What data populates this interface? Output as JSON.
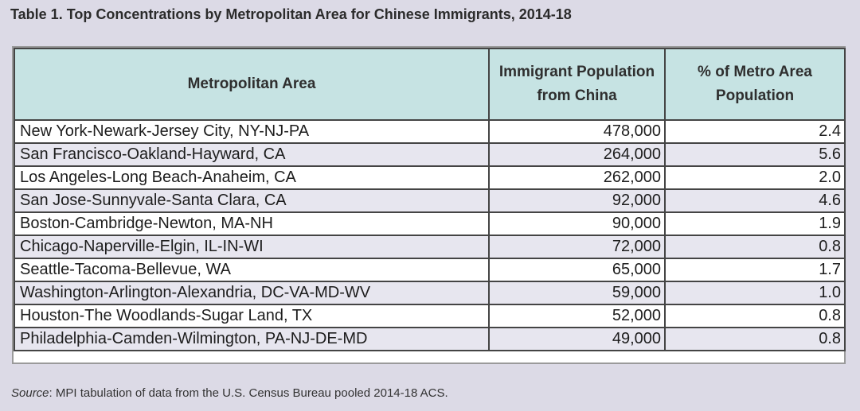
{
  "title": "Table 1. Top Concentrations by Metropolitan Area for Chinese Immigrants, 2014-18",
  "headers": {
    "metro": "Metropolitan Area",
    "pop_line1": "Immigrant Population",
    "pop_line2": "from China",
    "pct_line1": "% of Metro Area",
    "pct_line2": "Population"
  },
  "rows": [
    {
      "metro": "New York-Newark-Jersey City, NY-NJ-PA",
      "population": "478,000",
      "pct": "2.4"
    },
    {
      "metro": "San Francisco-Oakland-Hayward, CA",
      "population": "264,000",
      "pct": "5.6"
    },
    {
      "metro": "Los Angeles-Long Beach-Anaheim, CA",
      "population": "262,000",
      "pct": "2.0"
    },
    {
      "metro": "San Jose-Sunnyvale-Santa Clara, CA",
      "population": "92,000",
      "pct": "4.6"
    },
    {
      "metro": "Boston-Cambridge-Newton, MA-NH",
      "population": "90,000",
      "pct": "1.9"
    },
    {
      "metro": "Chicago-Naperville-Elgin, IL-IN-WI",
      "population": "72,000",
      "pct": "0.8"
    },
    {
      "metro": "Seattle-Tacoma-Bellevue, WA",
      "population": "65,000",
      "pct": "1.7"
    },
    {
      "metro": "Washington-Arlington-Alexandria, DC-VA-MD-WV",
      "population": "59,000",
      "pct": "1.0"
    },
    {
      "metro": "Houston-The Woodlands-Sugar Land, TX",
      "population": "52,000",
      "pct": "0.8"
    },
    {
      "metro": "Philadelphia-Camden-Wilmington, PA-NJ-DE-MD",
      "population": "49,000",
      "pct": "0.8"
    }
  ],
  "source": {
    "label": "Source",
    "text": ": MPI tabulation of data from the U.S. Census Bureau pooled 2014-18 ACS."
  }
}
